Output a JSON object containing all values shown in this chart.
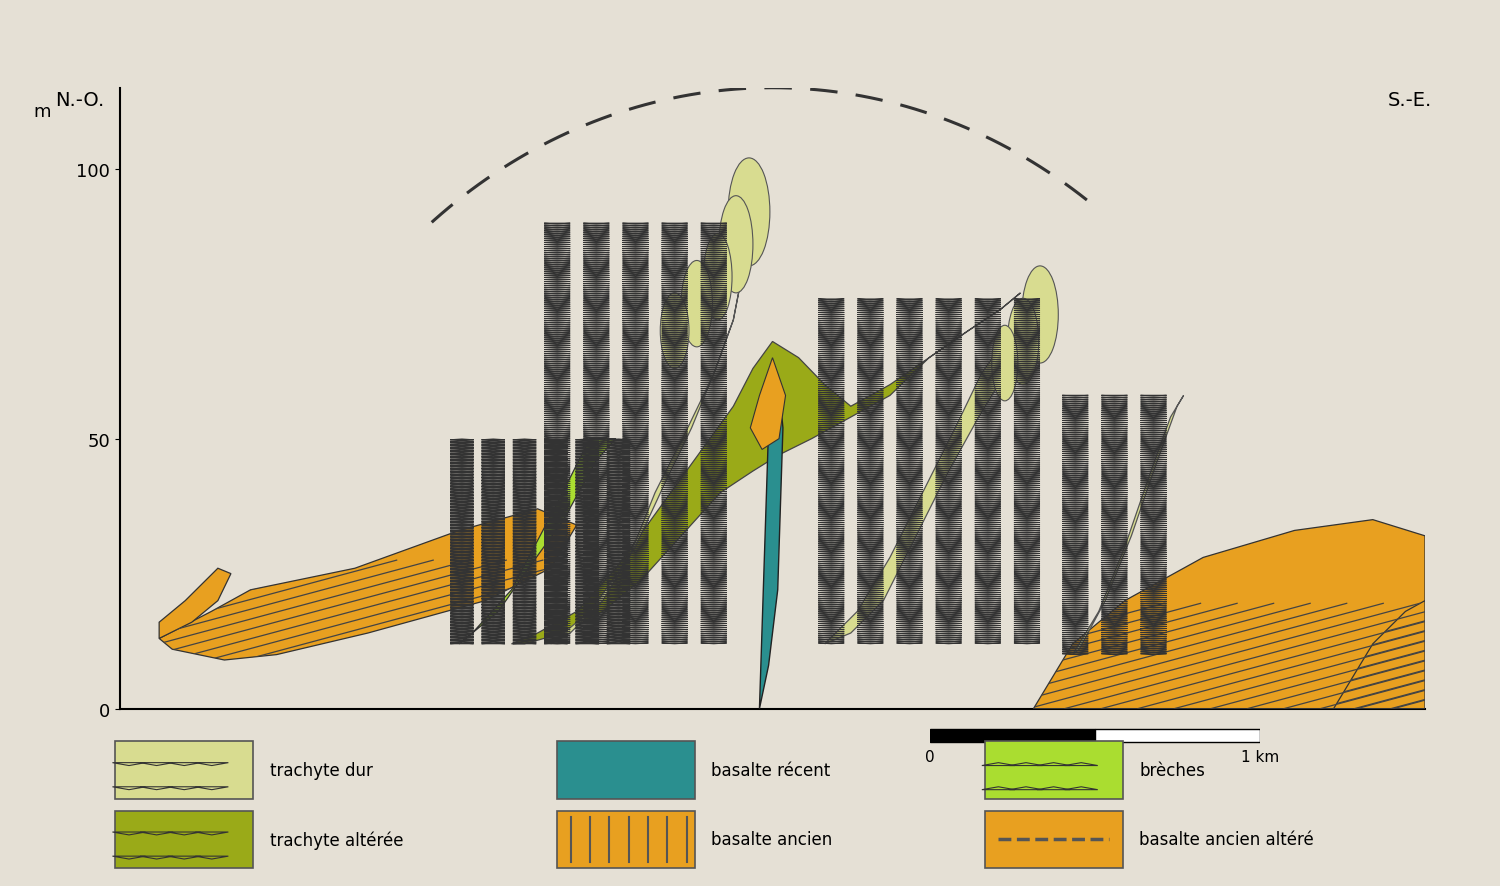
{
  "background_color": "#e5e0d5",
  "color_trachyte_dur": "#d8dc90",
  "color_trachyte_altere": "#9aaa18",
  "color_basalte_recent": "#2a8f8f",
  "color_basalte_ancien": "#e8a020",
  "color_breches": "#aadd30",
  "label_no": "N.-O.",
  "label_se": "S.-E.",
  "label_m": "m",
  "ytick_labels": [
    "0",
    "50",
    "100"
  ],
  "ytick_vals": [
    0,
    50,
    100
  ],
  "scale_label_0": "0",
  "scale_label_1": "1 km",
  "legend_row1": [
    "trachyte dur",
    "basalte récent",
    "brèches"
  ],
  "legend_row2": [
    "trachyte altérée",
    "basalte ancien",
    "basalte ancien altéré"
  ]
}
